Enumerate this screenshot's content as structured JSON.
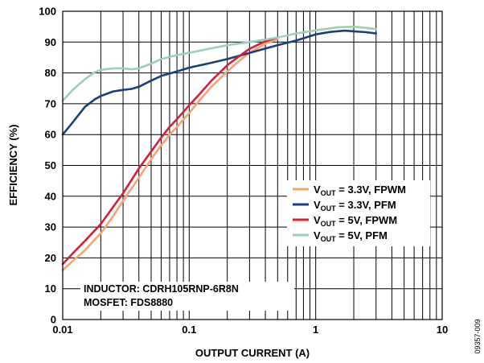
{
  "chart_data": {
    "type": "line",
    "xlabel": "OUTPUT CURRENT (A)",
    "ylabel": "EFFICIENCY (%)",
    "xscale": "log",
    "xlim": [
      0.01,
      10
    ],
    "ylim": [
      0,
      100
    ],
    "grid": true,
    "legend_position": "center-right",
    "x_ticks": [
      {
        "value": 0.01,
        "label": "0.01"
      },
      {
        "value": 0.1,
        "label": "0.1"
      },
      {
        "value": 1,
        "label": "1"
      },
      {
        "value": 10,
        "label": "10"
      }
    ],
    "y_ticks": [
      {
        "value": 0,
        "label": "0"
      },
      {
        "value": 10,
        "label": "10"
      },
      {
        "value": 20,
        "label": "20"
      },
      {
        "value": 30,
        "label": "30"
      },
      {
        "value": 40,
        "label": "40"
      },
      {
        "value": 50,
        "label": "50"
      },
      {
        "value": 60,
        "label": "60"
      },
      {
        "value": 70,
        "label": "70"
      },
      {
        "value": 80,
        "label": "80"
      },
      {
        "value": 90,
        "label": "90"
      },
      {
        "value": 100,
        "label": "100"
      }
    ],
    "series": [
      {
        "name_main": "V",
        "name_sub": "OUT",
        "name_rest": " = 3.3V, FPWM",
        "color": "#f4a470",
        "x": [
          0.01,
          0.012,
          0.015,
          0.02,
          0.025,
          0.03,
          0.04,
          0.05,
          0.06,
          0.07,
          0.08,
          0.1,
          0.12,
          0.15,
          0.2,
          0.25,
          0.3,
          0.4,
          0.5
        ],
        "y": [
          16,
          19,
          22.5,
          28,
          33.5,
          38.5,
          46,
          52,
          56.5,
          60,
          62.5,
          67,
          71,
          75.5,
          80.5,
          84,
          86.5,
          89.5,
          91
        ]
      },
      {
        "name_main": "V",
        "name_sub": "OUT",
        "name_rest": " = 3.3V, PFM",
        "color": "#1c3f7c",
        "x": [
          0.01,
          0.012,
          0.015,
          0.018,
          0.02,
          0.025,
          0.03,
          0.035,
          0.04,
          0.05,
          0.06,
          0.08,
          0.1,
          0.15,
          0.2,
          0.3,
          0.5,
          0.7,
          1,
          1.3,
          1.7,
          2,
          2.5,
          3
        ],
        "y": [
          60,
          64,
          69,
          71.5,
          72.5,
          74,
          74.5,
          74.8,
          75.5,
          77.5,
          79,
          80.5,
          81.7,
          83.3,
          84.5,
          86.5,
          89,
          90.5,
          92.5,
          93.3,
          93.7,
          93.5,
          93.2,
          92.8
        ]
      },
      {
        "name_main": "V",
        "name_sub": "OUT",
        "name_rest": " = 5V, FPWM",
        "color": "#d71f36",
        "x": [
          0.01,
          0.012,
          0.015,
          0.02,
          0.025,
          0.03,
          0.04,
          0.05,
          0.06,
          0.07,
          0.08,
          0.1,
          0.12,
          0.15,
          0.2,
          0.25,
          0.3,
          0.4,
          0.5
        ],
        "y": [
          18,
          21.5,
          25.5,
          31,
          36.5,
          41,
          49,
          54.5,
          59,
          62.5,
          65,
          69.5,
          73,
          77.5,
          82.5,
          85.5,
          87.8,
          90.3,
          91.5
        ]
      },
      {
        "name_main": "V",
        "name_sub": "OUT",
        "name_rest": " = 5V, PFM",
        "color": "#9fcfb4",
        "x": [
          0.01,
          0.012,
          0.015,
          0.018,
          0.02,
          0.025,
          0.03,
          0.035,
          0.04,
          0.05,
          0.06,
          0.08,
          0.1,
          0.15,
          0.2,
          0.3,
          0.5,
          0.7,
          1,
          1.5,
          2,
          2.5,
          3
        ],
        "y": [
          71,
          74.5,
          78,
          80.3,
          81,
          81.5,
          81.5,
          81.2,
          81.5,
          83,
          84.5,
          85.8,
          86.5,
          88,
          89,
          90,
          91.5,
          92.8,
          93.8,
          94.8,
          95,
          94.6,
          94.2
        ]
      }
    ],
    "annotation": [
      "INDUCTOR: CDRH105RNP-6R8N",
      "MOSFET: FDS8880"
    ],
    "figure_id": "09357-009"
  }
}
